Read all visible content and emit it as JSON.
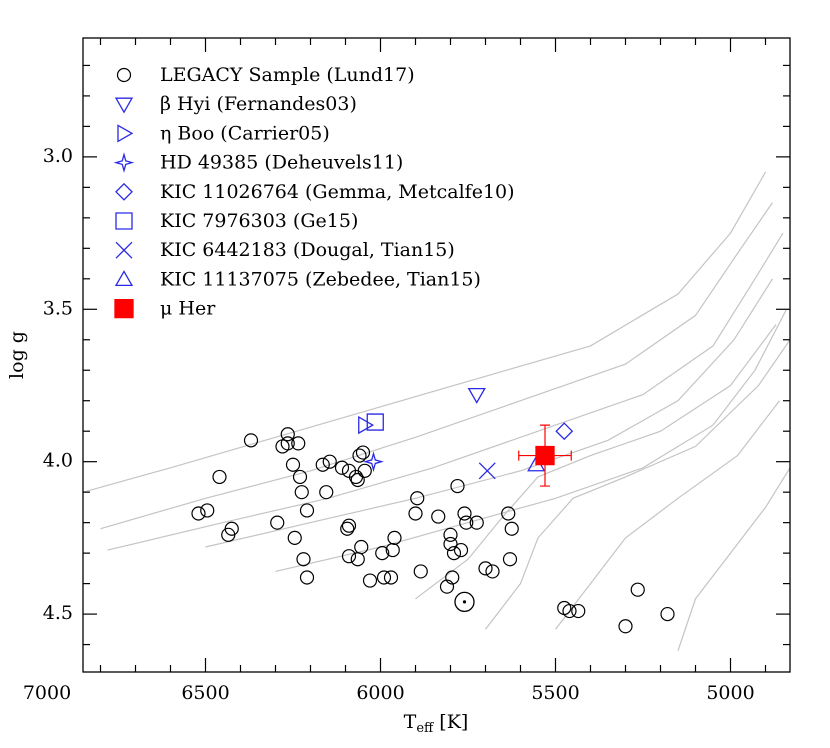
{
  "chart_data": {
    "type": "scatter",
    "x_label": [
      "T",
      "eff",
      "[K]"
    ],
    "y_label": "log g",
    "xlim": [
      6850,
      4830
    ],
    "ylim": [
      2.61,
      4.69
    ],
    "y_inverted": true,
    "xticks": [
      7000,
      6500,
      6000,
      5500,
      5000
    ],
    "xminorticks": [
      6800,
      6700,
      6600,
      6400,
      6300,
      6200,
      6100,
      5900,
      5800,
      5700,
      5600,
      5400,
      5300,
      5200,
      5100,
      4900
    ],
    "yticks": [
      {
        "value": 3,
        "label": "3.0"
      },
      3.5,
      {
        "value": 4,
        "label": "4.0"
      },
      4.5
    ],
    "yminorticks": [
      2.7,
      2.8,
      2.9,
      3.1,
      3.2,
      3.3,
      3.4,
      3.6,
      3.7,
      3.8,
      3.9,
      4.1,
      4.2,
      4.3,
      4.4,
      4.6
    ],
    "tracks": {
      "color": "#c4c4c4",
      "lines": [
        {
          "x": [
            6850,
            6600,
            6300,
            6000,
            5700,
            5400,
            5150,
            5000,
            4900
          ],
          "values": [
            4.1,
            4.02,
            3.92,
            3.82,
            3.72,
            3.62,
            3.45,
            3.25,
            3.05
          ]
        },
        {
          "x": [
            6800,
            6500,
            6200,
            5900,
            5600,
            5300,
            5100,
            4970,
            4880
          ],
          "values": [
            4.22,
            4.12,
            4.03,
            3.92,
            3.8,
            3.68,
            3.52,
            3.3,
            3.15
          ]
        },
        {
          "x": [
            6780,
            6450,
            6150,
            5850,
            5550,
            5250,
            5050,
            4930,
            4850
          ],
          "values": [
            4.29,
            4.2,
            4.12,
            4.02,
            3.9,
            3.78,
            3.62,
            3.4,
            3.25
          ]
        },
        {
          "x": [
            6500,
            6200,
            5900,
            5600,
            5350,
            5150,
            4990,
            4880
          ],
          "values": [
            4.28,
            4.2,
            4.12,
            4.03,
            3.93,
            3.8,
            3.6,
            3.4
          ]
        },
        {
          "x": [
            6300,
            6000,
            5750,
            5500,
            5250,
            5050,
            4930,
            4840
          ],
          "values": [
            4.36,
            4.28,
            4.2,
            4.12,
            4.02,
            3.88,
            3.7,
            3.5
          ]
        },
        {
          "x": [
            5900,
            5750,
            5650,
            5550,
            5400,
            5200,
            5000,
            4870
          ],
          "values": [
            4.45,
            4.32,
            4.18,
            4.05,
            3.98,
            3.9,
            3.75,
            3.55
          ]
        },
        {
          "x": [
            5700,
            5600,
            5550,
            5450,
            5300,
            5100,
            4920,
            4830
          ],
          "values": [
            4.55,
            4.4,
            4.25,
            4.12,
            4.05,
            3.95,
            3.75,
            3.6
          ]
        },
        {
          "x": [
            5500,
            5400,
            5300,
            5150,
            4980,
            4860
          ],
          "values": [
            4.55,
            4.4,
            4.25,
            4.12,
            3.98,
            3.8
          ]
        },
        {
          "x": [
            5150,
            5100,
            5000,
            4900,
            4830
          ],
          "values": [
            4.62,
            4.45,
            4.3,
            4.15,
            4.02
          ]
        }
      ]
    },
    "sun": {
      "color": "#000000",
      "x": [
        5760
      ],
      "values": [
        4.46
      ]
    },
    "series": [
      {
        "name": "LEGACY Sample (Lund17)",
        "color": "#000000",
        "marker": "circle",
        "x": [
          6370,
          6280,
          6235,
          6265,
          6265,
          6460,
          6520,
          6495,
          6425,
          6435,
          6295,
          6250,
          6225,
          6230,
          6210,
          6245,
          6220,
          6210,
          6165,
          6155,
          6145,
          6110,
          6090,
          6070,
          6060,
          6050,
          6045,
          6065,
          6090,
          6095,
          6090,
          6055,
          6065,
          6030,
          5995,
          5990,
          5970,
          5965,
          5960,
          5895,
          5900,
          5885,
          5835,
          5760,
          5755,
          5780,
          5800,
          5800,
          5790,
          5770,
          5810,
          5795,
          5725,
          5700,
          5680,
          5635,
          5625,
          5630,
          5475,
          5460,
          5435,
          5300,
          5265,
          5180
        ],
        "values": [
          3.93,
          3.95,
          3.94,
          3.91,
          3.94,
          4.05,
          4.17,
          4.16,
          4.22,
          4.24,
          4.2,
          4.01,
          4.1,
          4.05,
          4.16,
          4.25,
          4.32,
          4.38,
          4.01,
          4.1,
          4.0,
          4.02,
          4.03,
          4.05,
          3.98,
          3.97,
          4.03,
          4.06,
          4.21,
          4.22,
          4.31,
          4.28,
          4.32,
          4.39,
          4.3,
          4.38,
          4.38,
          4.29,
          4.25,
          4.12,
          4.17,
          4.36,
          4.18,
          4.17,
          4.2,
          4.08,
          4.24,
          4.27,
          4.3,
          4.29,
          4.41,
          4.38,
          4.2,
          4.35,
          4.36,
          4.17,
          4.22,
          4.32,
          4.48,
          4.49,
          4.49,
          4.54,
          4.42,
          4.5
        ]
      },
      {
        "name": "β Hyi (Fernandes03)",
        "color": "#2a2ae6",
        "marker": "tri-down",
        "x": [
          5725
        ],
        "values": [
          3.78
        ]
      },
      {
        "name": "η Boo (Carrier05)",
        "color": "#2a2ae6",
        "marker": "tri-right",
        "x": [
          6045
        ],
        "values": [
          3.88
        ]
      },
      {
        "name": "HD 49385 (Deheuvels11)",
        "color": "#2a2ae6",
        "marker": "star4",
        "x": [
          6020
        ],
        "values": [
          4.0
        ]
      },
      {
        "name": "KIC 11026764 (Gemma, Metcalfe10)",
        "color": "#2a2ae6",
        "marker": "diamond",
        "x": [
          5475
        ],
        "values": [
          3.9
        ]
      },
      {
        "name": "KIC 7976303 (Ge15)",
        "color": "#2a2ae6",
        "marker": "square",
        "x": [
          6015
        ],
        "values": [
          3.87
        ]
      },
      {
        "name": "KIC 6442183 (Dougal, Tian15)",
        "color": "#2a2ae6",
        "marker": "cross",
        "x": [
          5695
        ],
        "values": [
          4.03
        ]
      },
      {
        "name": "KIC 11137075 (Zebedee, Tian15)",
        "color": "#2a2ae6",
        "marker": "tri-up",
        "x": [
          5555
        ],
        "values": [
          4.01
        ]
      },
      {
        "name": "μ Her",
        "color": "#ff0000",
        "marker": "filled-square",
        "x": [
          5530
        ],
        "values": [
          3.98
        ],
        "xerr": [
          75
        ],
        "yerr": [
          0.1
        ]
      }
    ]
  }
}
